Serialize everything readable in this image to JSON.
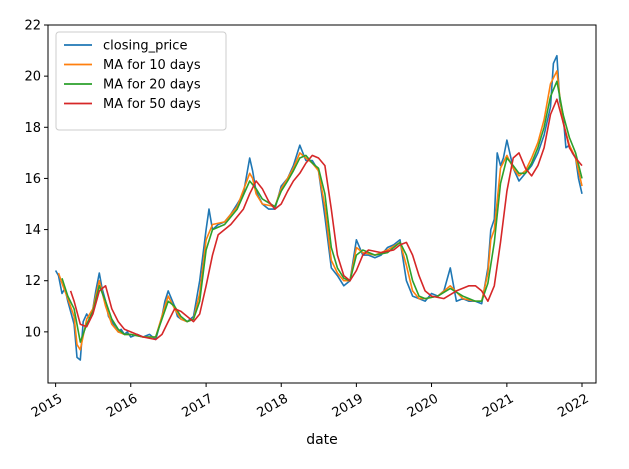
{
  "chart_data": {
    "type": "line",
    "xlabel": "date",
    "ylabel": "",
    "xlim": [
      "2014-11-25",
      "2022-03-10"
    ],
    "ylim": [
      8.0,
      22.0
    ],
    "x_ticks": [
      "2015",
      "2016",
      "2017",
      "2018",
      "2019",
      "2020",
      "2021",
      "2022"
    ],
    "y_ticks": [
      "10",
      "12",
      "14",
      "16",
      "18",
      "20",
      "22"
    ],
    "grid": false,
    "legend_position": "top-left",
    "series": [
      {
        "name": "closing_price",
        "color": "#1f77b4",
        "x": [
          "2015-01-01",
          "2015-01-15",
          "2015-02-01",
          "2015-02-15",
          "2015-03-01",
          "2015-03-15",
          "2015-04-01",
          "2015-04-15",
          "2015-05-01",
          "2015-05-15",
          "2015-06-01",
          "2015-06-15",
          "2015-07-01",
          "2015-07-15",
          "2015-08-01",
          "2015-08-15",
          "2015-09-01",
          "2015-09-15",
          "2015-10-01",
          "2015-10-15",
          "2015-11-01",
          "2015-11-15",
          "2015-12-01",
          "2015-12-15",
          "2016-01-01",
          "2016-02-01",
          "2016-03-01",
          "2016-04-01",
          "2016-05-01",
          "2016-06-01",
          "2016-06-15",
          "2016-07-01",
          "2016-08-01",
          "2016-08-15",
          "2016-09-01",
          "2016-10-01",
          "2016-11-01",
          "2016-12-01",
          "2017-01-01",
          "2017-01-15",
          "2017-02-01",
          "2017-03-01",
          "2017-04-01",
          "2017-05-01",
          "2017-06-01",
          "2017-07-01",
          "2017-08-01",
          "2017-08-15",
          "2017-09-01",
          "2017-10-01",
          "2017-11-01",
          "2017-12-01",
          "2018-01-01",
          "2018-02-01",
          "2018-03-01",
          "2018-04-01",
          "2018-05-01",
          "2018-06-01",
          "2018-07-01",
          "2018-08-01",
          "2018-09-01",
          "2018-10-01",
          "2018-11-01",
          "2018-12-01",
          "2019-01-01",
          "2019-02-01",
          "2019-03-01",
          "2019-04-01",
          "2019-05-01",
          "2019-06-01",
          "2019-07-01",
          "2019-08-01",
          "2019-09-01",
          "2019-10-01",
          "2019-11-01",
          "2019-12-01",
          "2020-01-01",
          "2020-02-01",
          "2020-03-01",
          "2020-04-01",
          "2020-05-01",
          "2020-06-01",
          "2020-07-01",
          "2020-08-01",
          "2020-09-01",
          "2020-10-01",
          "2020-10-15",
          "2020-11-01",
          "2020-11-15",
          "2020-12-01",
          "2020-12-15",
          "2021-01-01",
          "2021-02-01",
          "2021-03-01",
          "2021-04-01",
          "2021-05-01",
          "2021-06-01",
          "2021-07-01",
          "2021-08-01",
          "2021-08-15",
          "2021-09-01",
          "2021-09-15",
          "2021-10-01",
          "2021-10-15",
          "2021-11-01",
          "2021-11-15",
          "2021-12-01",
          "2021-12-15",
          "2022-01-01"
        ],
        "values": [
          12.4,
          12.2,
          11.5,
          11.7,
          11.2,
          10.8,
          10.3,
          9.0,
          8.9,
          10.4,
          10.7,
          10.5,
          10.9,
          11.6,
          12.3,
          11.7,
          11.2,
          10.6,
          10.4,
          10.2,
          10.0,
          10.1,
          9.9,
          10.0,
          9.8,
          9.9,
          9.8,
          9.9,
          9.7,
          10.6,
          11.2,
          11.6,
          11.0,
          10.6,
          10.5,
          10.4,
          10.6,
          12.0,
          14.0,
          14.8,
          14.0,
          14.2,
          14.3,
          14.6,
          15.0,
          15.4,
          16.8,
          16.3,
          15.5,
          15.0,
          14.8,
          14.8,
          15.7,
          16.0,
          16.5,
          17.3,
          16.7,
          16.7,
          16.3,
          14.5,
          12.5,
          12.2,
          11.8,
          12.0,
          13.6,
          13.0,
          13.0,
          12.9,
          13.0,
          13.3,
          13.4,
          13.6,
          12.0,
          11.4,
          11.3,
          11.2,
          11.5,
          11.4,
          11.6,
          12.5,
          11.2,
          11.3,
          11.2,
          11.2,
          11.1,
          12.5,
          14.0,
          14.4,
          17.0,
          16.5,
          16.8,
          17.5,
          16.4,
          15.9,
          16.2,
          16.5,
          17.0,
          17.7,
          18.8,
          20.5,
          20.8,
          19.0,
          18.5,
          17.2,
          17.3,
          17.0,
          16.8,
          16.0,
          15.4
        ]
      },
      {
        "name": "MA for 10 days",
        "color": "#ff7f0e",
        "x": [
          "2015-01-15",
          "2015-02-01",
          "2015-03-01",
          "2015-04-01",
          "2015-04-15",
          "2015-05-01",
          "2015-06-01",
          "2015-07-01",
          "2015-08-01",
          "2015-09-01",
          "2015-10-01",
          "2015-11-01",
          "2015-12-01",
          "2016-01-01",
          "2016-03-01",
          "2016-05-01",
          "2016-06-15",
          "2016-07-01",
          "2016-08-01",
          "2016-09-01",
          "2016-10-01",
          "2016-11-01",
          "2016-12-01",
          "2017-01-01",
          "2017-02-01",
          "2017-04-01",
          "2017-06-01",
          "2017-08-01",
          "2017-08-15",
          "2017-09-01",
          "2017-10-01",
          "2017-12-01",
          "2018-01-01",
          "2018-02-01",
          "2018-03-01",
          "2018-04-01",
          "2018-05-01",
          "2018-06-01",
          "2018-07-01",
          "2018-08-01",
          "2018-09-01",
          "2018-10-01",
          "2018-11-01",
          "2018-12-01",
          "2019-01-01",
          "2019-02-01",
          "2019-04-01",
          "2019-06-01",
          "2019-08-01",
          "2019-09-01",
          "2019-10-01",
          "2019-11-01",
          "2019-12-01",
          "2020-02-01",
          "2020-04-01",
          "2020-06-01",
          "2020-08-01",
          "2020-09-01",
          "2020-10-01",
          "2020-10-15",
          "2020-11-01",
          "2020-12-01",
          "2021-01-01",
          "2021-02-01",
          "2021-03-01",
          "2021-04-01",
          "2021-05-01",
          "2021-06-01",
          "2021-07-01",
          "2021-08-01",
          "2021-09-01",
          "2021-09-15",
          "2021-10-01",
          "2021-11-01",
          "2021-12-01",
          "2022-01-01"
        ],
        "values": [
          12.3,
          11.9,
          11.3,
          10.6,
          9.5,
          9.3,
          10.5,
          10.9,
          12.0,
          11.0,
          10.3,
          10.0,
          9.9,
          9.9,
          9.8,
          9.8,
          11.0,
          11.4,
          10.9,
          10.5,
          10.4,
          10.5,
          11.5,
          13.6,
          14.2,
          14.3,
          14.9,
          16.2,
          16.0,
          15.4,
          15.0,
          14.9,
          15.6,
          16.0,
          16.4,
          17.0,
          16.8,
          16.6,
          16.3,
          14.9,
          12.8,
          12.3,
          12.0,
          12.0,
          13.3,
          13.1,
          13.0,
          13.2,
          13.5,
          12.6,
          11.6,
          11.3,
          11.3,
          11.4,
          11.8,
          11.3,
          11.2,
          11.2,
          12.3,
          13.6,
          14.0,
          16.4,
          16.9,
          16.4,
          16.1,
          16.3,
          16.8,
          17.4,
          18.3,
          19.7,
          20.2,
          19.2,
          18.2,
          17.3,
          16.8,
          15.7
        ]
      },
      {
        "name": "MA for 20 days",
        "color": "#2ca02c",
        "x": [
          "2015-02-01",
          "2015-03-01",
          "2015-04-01",
          "2015-05-01",
          "2015-06-01",
          "2015-07-01",
          "2015-08-01",
          "2015-09-01",
          "2015-10-01",
          "2015-11-01",
          "2015-12-01",
          "2016-01-01",
          "2016-03-01",
          "2016-05-01",
          "2016-07-01",
          "2016-08-01",
          "2016-09-01",
          "2016-10-01",
          "2016-11-01",
          "2016-12-01",
          "2017-01-01",
          "2017-02-01",
          "2017-04-01",
          "2017-06-01",
          "2017-08-01",
          "2017-09-01",
          "2017-10-01",
          "2017-12-01",
          "2018-01-01",
          "2018-02-01",
          "2018-03-01",
          "2018-04-01",
          "2018-05-01",
          "2018-06-01",
          "2018-07-01",
          "2018-08-01",
          "2018-09-01",
          "2018-10-01",
          "2018-11-01",
          "2018-12-01",
          "2019-01-01",
          "2019-02-01",
          "2019-04-01",
          "2019-06-01",
          "2019-08-01",
          "2019-09-01",
          "2019-10-01",
          "2019-11-01",
          "2019-12-01",
          "2020-02-01",
          "2020-04-01",
          "2020-06-01",
          "2020-08-01",
          "2020-09-01",
          "2020-10-01",
          "2020-11-01",
          "2020-12-01",
          "2021-01-01",
          "2021-02-01",
          "2021-03-01",
          "2021-04-01",
          "2021-05-01",
          "2021-06-01",
          "2021-07-01",
          "2021-08-01",
          "2021-09-01",
          "2021-10-01",
          "2021-11-01",
          "2021-12-01",
          "2022-01-01"
        ],
        "values": [
          12.1,
          11.4,
          10.9,
          9.6,
          10.3,
          10.8,
          11.8,
          11.2,
          10.5,
          10.1,
          9.9,
          9.9,
          9.8,
          9.8,
          11.2,
          11.0,
          10.6,
          10.4,
          10.5,
          11.2,
          13.2,
          14.0,
          14.2,
          14.8,
          15.9,
          15.6,
          15.2,
          14.9,
          15.5,
          15.9,
          16.3,
          16.8,
          16.9,
          16.6,
          16.4,
          15.4,
          13.3,
          12.5,
          12.1,
          12.0,
          13.0,
          13.2,
          13.0,
          13.1,
          13.5,
          13.0,
          12.0,
          11.4,
          11.3,
          11.4,
          11.7,
          11.4,
          11.2,
          11.2,
          11.9,
          13.5,
          15.8,
          16.8,
          16.5,
          16.2,
          16.2,
          16.6,
          17.2,
          18.0,
          19.2,
          19.8,
          18.5,
          17.6,
          17.0,
          16.0
        ]
      },
      {
        "name": "MA for 50 days",
        "color": "#d62728",
        "x": [
          "2015-03-15",
          "2015-04-01",
          "2015-05-01",
          "2015-06-01",
          "2015-07-01",
          "2015-08-01",
          "2015-09-01",
          "2015-10-01",
          "2015-11-01",
          "2015-12-01",
          "2016-01-01",
          "2016-03-01",
          "2016-05-01",
          "2016-06-01",
          "2016-07-01",
          "2016-08-01",
          "2016-09-01",
          "2016-10-01",
          "2016-11-01",
          "2016-12-01",
          "2017-01-01",
          "2017-02-01",
          "2017-03-01",
          "2017-05-01",
          "2017-07-01",
          "2017-08-01",
          "2017-09-01",
          "2017-10-01",
          "2017-11-01",
          "2017-12-01",
          "2018-01-01",
          "2018-02-01",
          "2018-03-01",
          "2018-04-01",
          "2018-05-01",
          "2018-06-01",
          "2018-07-01",
          "2018-08-01",
          "2018-09-01",
          "2018-10-01",
          "2018-11-01",
          "2018-12-01",
          "2019-01-01",
          "2019-02-01",
          "2019-03-01",
          "2019-05-01",
          "2019-07-01",
          "2019-08-01",
          "2019-09-01",
          "2019-10-01",
          "2019-11-01",
          "2019-12-01",
          "2020-01-01",
          "2020-03-01",
          "2020-05-01",
          "2020-07-01",
          "2020-08-01",
          "2020-09-01",
          "2020-10-01",
          "2020-11-01",
          "2020-12-01",
          "2021-01-01",
          "2021-02-01",
          "2021-03-01",
          "2021-04-01",
          "2021-05-01",
          "2021-06-01",
          "2021-07-01",
          "2021-08-01",
          "2021-09-01",
          "2021-10-01",
          "2021-11-01",
          "2021-12-01",
          "2022-01-01"
        ],
        "values": [
          11.6,
          11.2,
          10.3,
          10.2,
          10.7,
          11.6,
          11.8,
          10.9,
          10.4,
          10.1,
          10.0,
          9.8,
          9.7,
          9.9,
          10.4,
          10.9,
          10.8,
          10.6,
          10.4,
          10.7,
          11.8,
          13.0,
          13.8,
          14.2,
          14.8,
          15.4,
          15.9,
          15.6,
          15.1,
          14.8,
          15.0,
          15.5,
          15.9,
          16.2,
          16.6,
          16.9,
          16.8,
          16.5,
          14.8,
          13.0,
          12.2,
          12.0,
          12.4,
          13.0,
          13.2,
          13.1,
          13.2,
          13.4,
          13.5,
          13.0,
          12.2,
          11.6,
          11.4,
          11.3,
          11.6,
          11.8,
          11.8,
          11.6,
          11.2,
          11.8,
          13.5,
          15.5,
          16.8,
          17.0,
          16.4,
          16.1,
          16.5,
          17.2,
          18.5,
          19.1,
          18.2,
          17.2,
          16.8,
          16.5
        ]
      }
    ]
  }
}
